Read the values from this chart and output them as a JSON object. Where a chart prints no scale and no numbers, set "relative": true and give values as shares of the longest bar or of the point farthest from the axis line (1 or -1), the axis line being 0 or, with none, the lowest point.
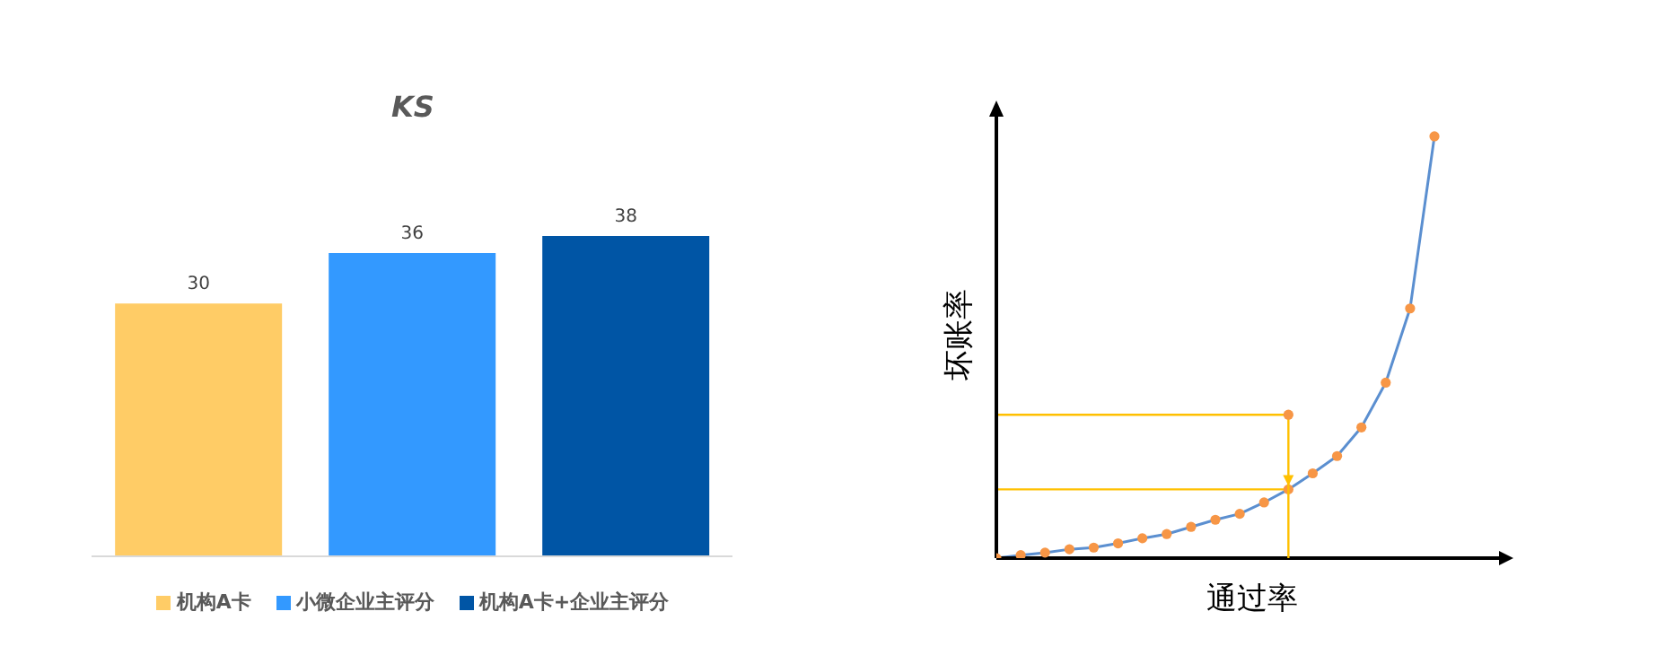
{
  "chart_data": [
    {
      "type": "bar",
      "title": "KS",
      "categories": [
        null,
        null,
        null
      ],
      "stacked": true,
      "data_labels": true,
      "legend": "bottom",
      "series": [
        {
          "name": "机构A卡",
          "color": "#ffcc66",
          "values": [
            30,
            null,
            null
          ]
        },
        {
          "name": "小微企业主评分",
          "color": "#3399ff",
          "values": [
            null,
            36,
            null
          ]
        },
        {
          "name": "机构A卡+企业主评分",
          "color": "#0055a5",
          "values": [
            null,
            null,
            38
          ]
        }
      ]
    },
    {
      "type": "line",
      "xlabel": "通过率",
      "ylabel": "坏账率",
      "relative": true,
      "categories": [
        null,
        null,
        null,
        null,
        null,
        null,
        null,
        null,
        null,
        null,
        null,
        null,
        null,
        null,
        null,
        null,
        null,
        null,
        null
      ],
      "marker": "circle",
      "series": [
        {
          "type": "line",
          "color": "#5b8fd0",
          "colors": [
            "#f79646",
            "#f79646",
            "#f79646",
            "#f79646",
            "#f79646",
            "#f79646",
            "#f79646",
            "#f79646",
            "#f79646",
            "#f79646",
            "#f79646",
            "#f79646",
            "#f79646",
            "#f79646",
            "#f79646",
            "#f79646",
            "#f79646",
            "#f79646",
            "#f79646"
          ],
          "values": [
            0,
            0.007,
            0.013,
            0.021,
            0.025,
            0.035,
            0.047,
            0.057,
            0.074,
            0.091,
            0.105,
            0.132,
            0.163,
            0.201,
            0.242,
            0.31,
            0.416,
            0.592,
            1
          ]
        }
      ],
      "ref_lines": [
        {
          "axis": "y",
          "value": 0.34,
          "color": "#ffc000"
        },
        {
          "axis": "y",
          "value": 0.163,
          "color": "#ffc000"
        }
      ]
    }
  ]
}
